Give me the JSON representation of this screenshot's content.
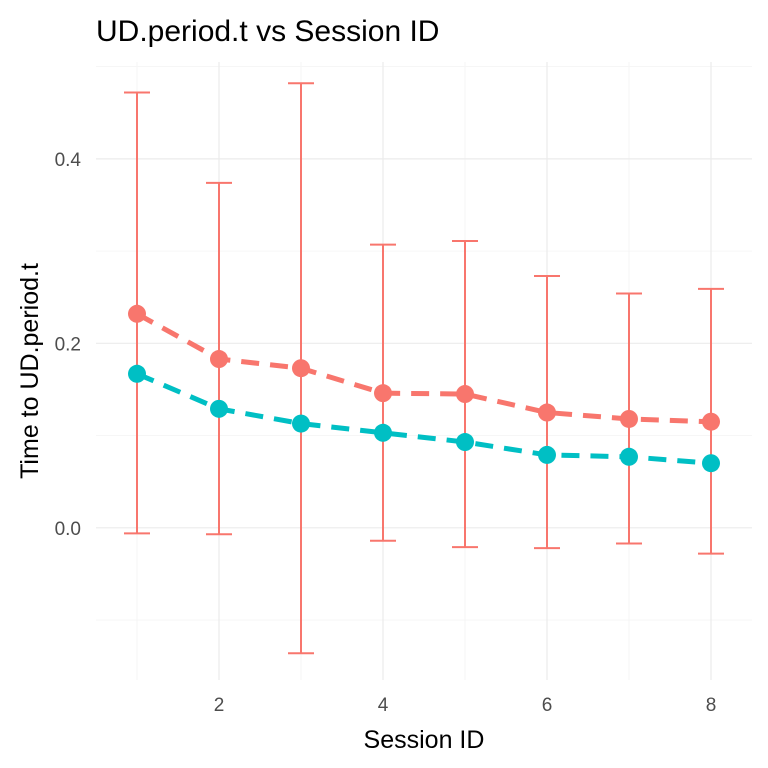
{
  "chart_data": {
    "type": "line",
    "title": "UD.period.t vs Session ID",
    "xlabel": "Session ID",
    "ylabel": "Time to UD.period.t",
    "xlim": [
      0.5,
      8.5
    ],
    "ylim": [
      -0.165,
      0.505
    ],
    "x_ticks": [
      2,
      4,
      6,
      8
    ],
    "x_tick_labels": [
      "2",
      "4",
      "6",
      "8"
    ],
    "y_ticks": [
      0.0,
      0.2,
      0.4
    ],
    "y_tick_labels": [
      "0.0",
      "0.2",
      "0.4"
    ],
    "grid": true,
    "legend": "none",
    "x": [
      1,
      2,
      3,
      4,
      5,
      6,
      7,
      8
    ],
    "series": [
      {
        "name": "series-red",
        "color": "#F8766D",
        "values": [
          0.232,
          0.183,
          0.173,
          0.146,
          0.145,
          0.125,
          0.118,
          0.115
        ],
        "error_low": [
          -0.006,
          -0.007,
          -0.136,
          -0.014,
          -0.021,
          -0.022,
          -0.017,
          -0.028
        ],
        "error_high": [
          0.472,
          0.374,
          0.482,
          0.307,
          0.311,
          0.273,
          0.254,
          0.259
        ]
      },
      {
        "name": "series-teal",
        "color": "#00BFC4",
        "values": [
          0.167,
          0.129,
          0.113,
          0.103,
          0.093,
          0.079,
          0.077,
          0.07
        ]
      }
    ]
  }
}
